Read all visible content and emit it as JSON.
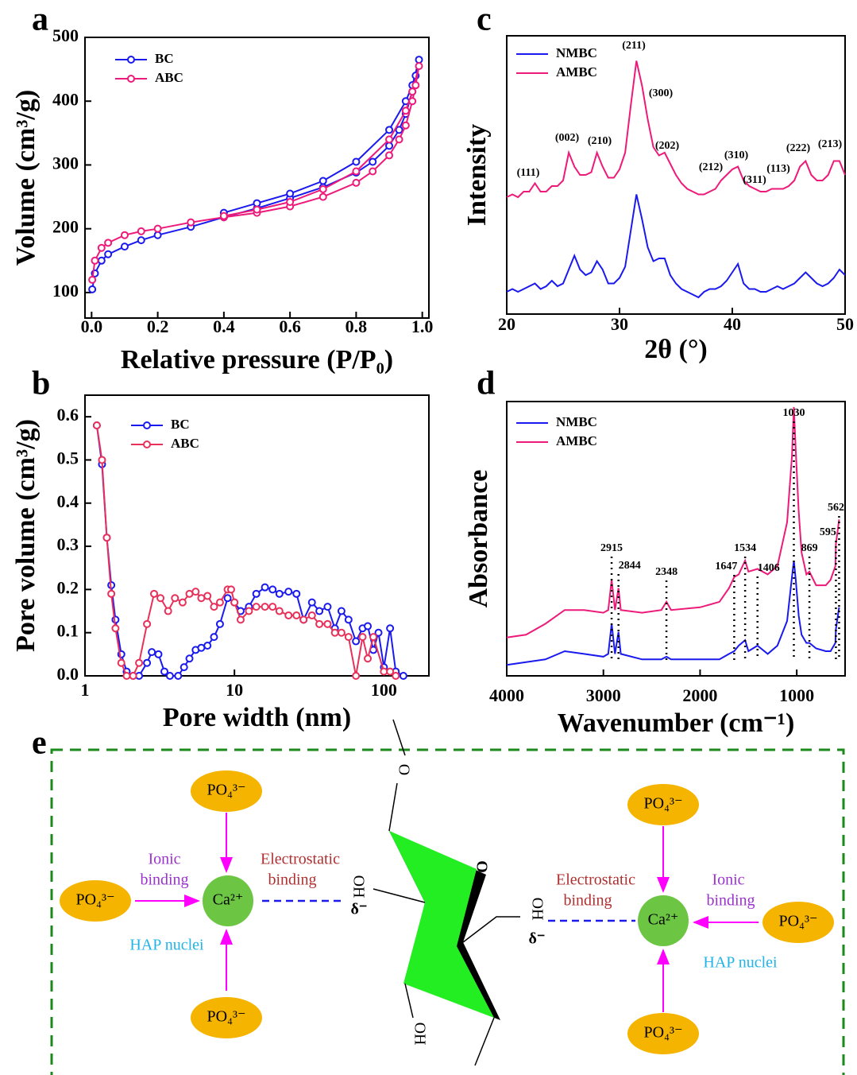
{
  "chart_data": [
    {
      "type": "line",
      "panel_label": "a",
      "x_label": "Relative pressure (P/P₀)",
      "y_label": "Volume (cm³/g)",
      "xlim": [
        -0.02,
        1.02
      ],
      "ylim": [
        60,
        500
      ],
      "xticks": [
        {
          "value": 0,
          "label": "0.0"
        },
        {
          "value": 0.2,
          "label": "0.2"
        },
        {
          "value": 0.4,
          "label": "0.4"
        },
        {
          "value": 0.6,
          "label": "0.6"
        },
        {
          "value": 0.8,
          "label": "0.8"
        },
        {
          "value": 1,
          "label": "1.0"
        }
      ],
      "yticks": [
        100,
        200,
        300,
        400,
        500
      ],
      "markers": true,
      "legend": "upper left",
      "series": [
        {
          "name": "BC",
          "color": "#1a1aee",
          "x": [
            0.002,
            0.01,
            0.03,
            0.05,
            0.1,
            0.15,
            0.2,
            0.3,
            0.4,
            0.5,
            0.6,
            0.7,
            0.8,
            0.85,
            0.9,
            0.93,
            0.95,
            0.97,
            0.98,
            0.99,
            0.97,
            0.95,
            0.9,
            0.8,
            0.7,
            0.6,
            0.5,
            0.4
          ],
          "values": [
            105,
            130,
            150,
            160,
            172,
            182,
            190,
            203,
            218,
            232,
            248,
            265,
            288,
            305,
            330,
            355,
            380,
            415,
            440,
            465,
            425,
            400,
            355,
            305,
            275,
            255,
            240,
            225
          ]
        },
        {
          "name": "ABC",
          "color": "#ee1a7a",
          "x": [
            0.002,
            0.01,
            0.03,
            0.05,
            0.1,
            0.15,
            0.2,
            0.3,
            0.4,
            0.5,
            0.6,
            0.7,
            0.8,
            0.85,
            0.9,
            0.93,
            0.95,
            0.97,
            0.98,
            0.99,
            0.97,
            0.95,
            0.9,
            0.8,
            0.7,
            0.6,
            0.5,
            0.4
          ],
          "values": [
            120,
            150,
            170,
            178,
            190,
            196,
            200,
            210,
            218,
            225,
            235,
            250,
            272,
            290,
            315,
            340,
            362,
            400,
            425,
            455,
            415,
            385,
            340,
            290,
            262,
            242,
            230,
            220
          ]
        }
      ]
    },
    {
      "type": "line",
      "panel_label": "b",
      "x_label": "Pore width (nm)",
      "y_label": "Pore volume (cm³/g)",
      "x_scale": "log",
      "xlim": [
        1,
        200
      ],
      "ylim": [
        0,
        0.65
      ],
      "xticks": [
        1,
        10,
        100
      ],
      "yticks": [
        {
          "value": 0,
          "label": "0.0"
        },
        {
          "value": 0.1,
          "label": "0.1"
        },
        {
          "value": 0.2,
          "label": "0.2"
        },
        {
          "value": 0.3,
          "label": "0.3"
        },
        {
          "value": 0.4,
          "label": "0.4"
        },
        {
          "value": 0.5,
          "label": "0.5"
        },
        {
          "value": 0.6,
          "label": "0.6"
        }
      ],
      "markers": true,
      "legend": "upper left",
      "series": [
        {
          "name": "BC",
          "color": "#1a1aee",
          "x": [
            1.2,
            1.3,
            1.4,
            1.5,
            1.6,
            1.75,
            1.9,
            2.1,
            2.3,
            2.6,
            2.8,
            3.1,
            3.4,
            3.7,
            4.2,
            4.6,
            5,
            5.5,
            6,
            6.6,
            7.3,
            8,
            9,
            10,
            11,
            12.5,
            14,
            16,
            18,
            20,
            23,
            26,
            29,
            33,
            37,
            42,
            47,
            52,
            58,
            65,
            72,
            78,
            85,
            92,
            100,
            110,
            120,
            135
          ],
          "values": [
            0.58,
            0.49,
            0.32,
            0.21,
            0.13,
            0.05,
            0.01,
            0,
            0,
            0.03,
            0.055,
            0.05,
            0.01,
            0,
            0,
            0.02,
            0.04,
            0.06,
            0.065,
            0.07,
            0.09,
            0.12,
            0.18,
            0.17,
            0.15,
            0.16,
            0.19,
            0.205,
            0.2,
            0.19,
            0.195,
            0.19,
            0.13,
            0.17,
            0.15,
            0.16,
            0.11,
            0.15,
            0.13,
            0.08,
            0.11,
            0.115,
            0.06,
            0.1,
            0.02,
            0.11,
            0.01,
            0
          ]
        },
        {
          "name": "ABC",
          "color": "#e8315a",
          "x": [
            1.2,
            1.3,
            1.4,
            1.5,
            1.6,
            1.75,
            1.9,
            2.1,
            2.3,
            2.6,
            2.9,
            3.2,
            3.6,
            4,
            4.5,
            5,
            5.5,
            6,
            6.6,
            7.3,
            8,
            9,
            9.5,
            10,
            11,
            12.5,
            14,
            16,
            18,
            20,
            23,
            26,
            29,
            33,
            37,
            42,
            47,
            52,
            58,
            65,
            72,
            78,
            85,
            100,
            110,
            120
          ],
          "values": [
            0.58,
            0.5,
            0.32,
            0.19,
            0.11,
            0.03,
            0,
            0,
            0.03,
            0.12,
            0.19,
            0.18,
            0.15,
            0.18,
            0.17,
            0.19,
            0.195,
            0.18,
            0.185,
            0.16,
            0.17,
            0.2,
            0.2,
            0.17,
            0.13,
            0.15,
            0.16,
            0.16,
            0.16,
            0.15,
            0.14,
            0.14,
            0.13,
            0.14,
            0.12,
            0.12,
            0.1,
            0.1,
            0.09,
            0,
            0.09,
            0.04,
            0.09,
            0.01,
            0.01,
            0
          ]
        }
      ]
    },
    {
      "type": "line",
      "panel_label": "c",
      "x_label": "2θ (°)",
      "y_label": "Intensity",
      "xlim": [
        20,
        50
      ],
      "ylim": [
        0,
        100
      ],
      "xticks": [
        20,
        30,
        40,
        50
      ],
      "legend": "upper left",
      "peak_labels": [
        "(111)",
        "(002)",
        "(210)",
        "(211)",
        "(300)",
        "(202)",
        "(212)",
        "(310)",
        "(311)",
        "(113)",
        "(222)",
        "(213)"
      ],
      "series": [
        {
          "name": "NMBC",
          "color": "#1a1aee",
          "x": [
            20,
            20.5,
            21,
            21.5,
            22,
            22.5,
            23,
            23.5,
            24,
            24.5,
            25,
            25.5,
            26,
            26.5,
            27,
            27.5,
            28,
            28.5,
            29,
            29.5,
            30,
            30.5,
            31,
            31.5,
            32,
            32.5,
            33,
            33.5,
            34,
            34.5,
            35,
            35.5,
            36,
            36.5,
            37,
            37.5,
            38,
            38.5,
            39,
            39.5,
            40,
            40.5,
            41,
            41.5,
            42,
            42.5,
            43,
            43.5,
            44,
            44.5,
            45,
            45.5,
            46,
            46.5,
            47,
            47.5,
            48,
            48.5,
            49,
            49.5,
            50
          ],
          "values": [
            8,
            9,
            8,
            9,
            10,
            11,
            9,
            10,
            12,
            10,
            11,
            16,
            21,
            16,
            14,
            15,
            19,
            16,
            11,
            11,
            13,
            17,
            30,
            43,
            34,
            24,
            19,
            20,
            20,
            14,
            11,
            9,
            8,
            7,
            6,
            8,
            9,
            9,
            10,
            12,
            15,
            18,
            11,
            9,
            9,
            8,
            8,
            9,
            10,
            9,
            10,
            11,
            13,
            15,
            13,
            11,
            10,
            11,
            13,
            16,
            14
          ]
        },
        {
          "name": "AMBC",
          "color": "#ee1a7a",
          "x": [
            20,
            20.5,
            21,
            21.5,
            22,
            22.5,
            23,
            23.5,
            24,
            24.5,
            25,
            25.5,
            26,
            26.5,
            27,
            27.5,
            28,
            28.5,
            29,
            29.5,
            30,
            30.5,
            31,
            31.5,
            32,
            32.5,
            33,
            33.5,
            34,
            34.5,
            35,
            35.5,
            36,
            36.5,
            37,
            37.5,
            38,
            38.5,
            39,
            39.5,
            40,
            40.5,
            41,
            41.5,
            42,
            42.5,
            43,
            43.5,
            44,
            44.5,
            45,
            45.5,
            46,
            46.5,
            47,
            47.5,
            48,
            48.5,
            49,
            49.5,
            50
          ],
          "values": [
            42,
            43,
            42,
            44,
            44,
            47,
            44,
            44,
            46,
            46,
            48,
            58,
            53,
            50,
            50,
            51,
            58,
            53,
            49,
            49,
            52,
            58,
            75,
            91,
            82,
            70,
            60,
            57,
            58,
            54,
            50,
            47,
            45,
            44,
            43,
            43,
            44,
            45,
            48,
            50,
            52,
            53,
            48,
            46,
            45,
            44,
            44,
            45,
            45,
            45,
            46,
            48,
            53,
            55,
            50,
            48,
            48,
            50,
            55,
            55,
            50
          ]
        }
      ]
    },
    {
      "type": "line",
      "panel_label": "d",
      "x_label": "Wavenumber (cm⁻¹)",
      "y_label": "Absorbance",
      "xlim": [
        4000,
        500
      ],
      "ylim": [
        0,
        100
      ],
      "xticks": [
        4000,
        3000,
        2000,
        1000
      ],
      "legend": "upper left",
      "peak_labels": [
        2915,
        2844,
        2348,
        1647,
        1534,
        1406,
        1030,
        869,
        595,
        562
      ],
      "series": [
        {
          "name": "NMBC",
          "color": "#1a1aee",
          "x": [
            4000,
            3800,
            3600,
            3400,
            3200,
            3000,
            2950,
            2915,
            2880,
            2844,
            2820,
            2600,
            2400,
            2348,
            2300,
            2000,
            1800,
            1700,
            1647,
            1600,
            1534,
            1500,
            1406,
            1300,
            1200,
            1100,
            1050,
            1030,
            1010,
            980,
            950,
            900,
            869,
            800,
            700,
            650,
            600,
            595,
            562
          ],
          "values": [
            4,
            5,
            6,
            9,
            8,
            7,
            8,
            19,
            8,
            16,
            8,
            6,
            6,
            7,
            6,
            6,
            6,
            8,
            9,
            11,
            13,
            9,
            11,
            8,
            11,
            20,
            36,
            42,
            35,
            22,
            15,
            12,
            12,
            10,
            9,
            9,
            12,
            17,
            25
          ]
        },
        {
          "name": "AMBC",
          "color": "#ee1a7a",
          "x": [
            4000,
            3800,
            3600,
            3400,
            3200,
            3000,
            2950,
            2915,
            2880,
            2844,
            2820,
            2600,
            2400,
            2348,
            2300,
            2000,
            1800,
            1700,
            1647,
            1600,
            1534,
            1500,
            1406,
            1300,
            1200,
            1100,
            1050,
            1030,
            1010,
            980,
            950,
            900,
            869,
            800,
            700,
            650,
            600,
            595,
            562
          ],
          "values": [
            14,
            15,
            19,
            24,
            24,
            23,
            24,
            35,
            24,
            32,
            24,
            23,
            24,
            27,
            24,
            25,
            27,
            32,
            36,
            37,
            42,
            38,
            39,
            37,
            40,
            56,
            80,
            98,
            82,
            60,
            45,
            37,
            38,
            33,
            33,
            35,
            40,
            48,
            57
          ]
        }
      ]
    }
  ],
  "diagram": {
    "panel_label": "e",
    "left": {
      "phosphates": [
        "PO₄³⁻",
        "PO₄³⁻",
        "PO₄³⁻"
      ],
      "calcium": "Ca²⁺",
      "ionic": [
        "Ionic",
        "binding"
      ],
      "electrostatic": [
        "Electrostatic",
        "binding"
      ],
      "nuclei": "HAP nuclei",
      "hydroxyl": "OH",
      "charge": "δ⁻"
    },
    "right": {
      "phosphates": [
        "PO₄³⁻",
        "PO₄³⁻",
        "PO₄³⁻"
      ],
      "calcium": "Ca²⁺",
      "ionic": [
        "Ionic",
        "binding"
      ],
      "electrostatic": [
        "Electrostatic",
        "binding"
      ],
      "nuclei": "HAP nuclei",
      "hydroxyl": "OH",
      "charge": "δ⁻"
    },
    "molecule": {
      "oxygens": [
        "O",
        "O"
      ],
      "hydroxyl": "OH"
    }
  }
}
